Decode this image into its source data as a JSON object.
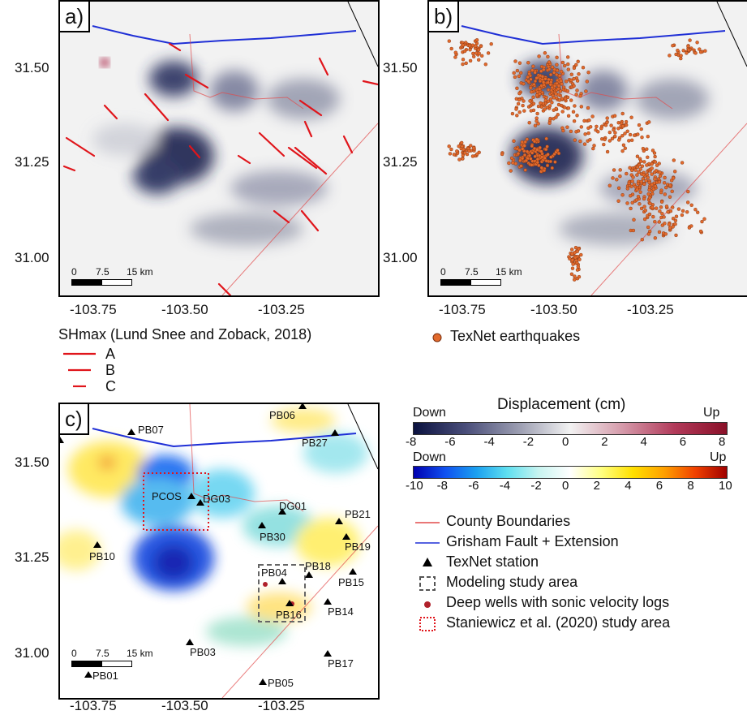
{
  "panels": {
    "a": {
      "label": "a)"
    },
    "b": {
      "label": "b)"
    },
    "c": {
      "label": "c)"
    }
  },
  "axes": {
    "y_ticks": [
      "31.50",
      "31.25",
      "31.00"
    ],
    "x_ticks": [
      "-103.75",
      "-103.50",
      "-103.25"
    ]
  },
  "scalebar": {
    "l0": "0",
    "l1": "7.5",
    "l2": "15 km"
  },
  "shmax_legend": {
    "title": "SHmax (Lund Snee and Zoback, 2018)",
    "items": [
      "A",
      "B",
      "C"
    ],
    "color": "#e0151b"
  },
  "eq_legend": {
    "label": "TexNet earthquakes",
    "color": "#e26a2c"
  },
  "colorbar1": {
    "title": "Displacement (cm)",
    "down": "Down",
    "up": "Up",
    "ticks": [
      "-8",
      "-6",
      "-4",
      "-2",
      "0",
      "2",
      "4",
      "6",
      "8"
    ]
  },
  "colorbar2": {
    "down": "Down",
    "up": "Up",
    "ticks": [
      "-10",
      "-8",
      "-6",
      "-4",
      "-2",
      "0",
      "2",
      "4",
      "6",
      "8",
      "10"
    ]
  },
  "map_legend": {
    "items": [
      {
        "label": "County Boundaries",
        "color": "#e24a4a"
      },
      {
        "label": "Grisham Fault + Extension",
        "color": "#1f2fd6"
      },
      {
        "label": "TexNet station",
        "color": "#000000"
      },
      {
        "label": "Modeling study area",
        "color": "#555555"
      },
      {
        "label": "Deep wells with sonic velocity logs",
        "color": "#b0202a"
      },
      {
        "label": "Staniewicz et al. (2020) study area",
        "color": "#e0151b"
      }
    ]
  },
  "stations": [
    "PB06",
    "PB07",
    "PB27",
    "PCOS",
    "DG03",
    "DG01",
    "PB21",
    "PB30",
    "PB19",
    "PB10",
    "PB18",
    "PB04",
    "PB15",
    "PB16",
    "PB14",
    "PB03",
    "PB17",
    "PB01",
    "PB05"
  ]
}
